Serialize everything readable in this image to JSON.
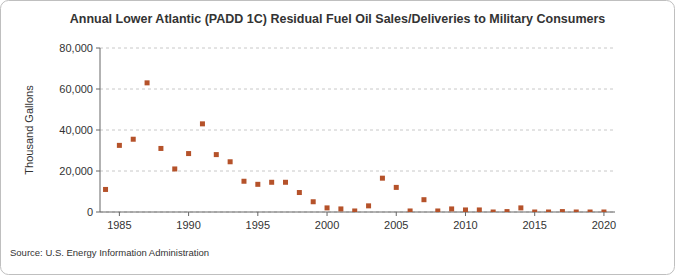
{
  "chart_data": {
    "type": "scatter",
    "title": "Annual Lower Atlantic (PADD 1C) Residual Fuel Oil Sales/Deliveries to Military Consumers",
    "y_label": "Thousand Gallons",
    "source": "Source: U.S. Energy Information Administration",
    "x": [
      1984,
      1985,
      1986,
      1987,
      1988,
      1989,
      1990,
      1991,
      1992,
      1993,
      1994,
      1995,
      1996,
      1997,
      1998,
      1999,
      2000,
      2001,
      2002,
      2003,
      2004,
      2005,
      2006,
      2007,
      2008,
      2009,
      2010,
      2011,
      2012,
      2013,
      2014,
      2015,
      2016,
      2017,
      2018,
      2019,
      2020
    ],
    "values": [
      11000,
      32500,
      35500,
      63000,
      31000,
      21000,
      28500,
      43000,
      28000,
      24500,
      15000,
      13500,
      14500,
      14500,
      9500,
      5000,
      2000,
      1500,
      500,
      3000,
      16500,
      12000,
      500,
      6000,
      500,
      1500,
      1000,
      1000,
      0,
      200,
      2000,
      0,
      0,
      200,
      0,
      0,
      0
    ],
    "color": "#b5522a",
    "marker": "square",
    "xlim": [
      1983.6,
      2020.8
    ],
    "xticks": [
      1985,
      1990,
      1995,
      2000,
      2005,
      2010,
      2015,
      2020
    ],
    "ylim": [
      0,
      80000
    ],
    "yticks": [
      0,
      {
        "value": 20000,
        "label": "20,000"
      },
      {
        "value": 40000,
        "label": "40,000"
      },
      {
        "value": 60000,
        "label": "60,000"
      },
      {
        "value": 80000,
        "label": "80,000"
      }
    ],
    "grid": true
  }
}
